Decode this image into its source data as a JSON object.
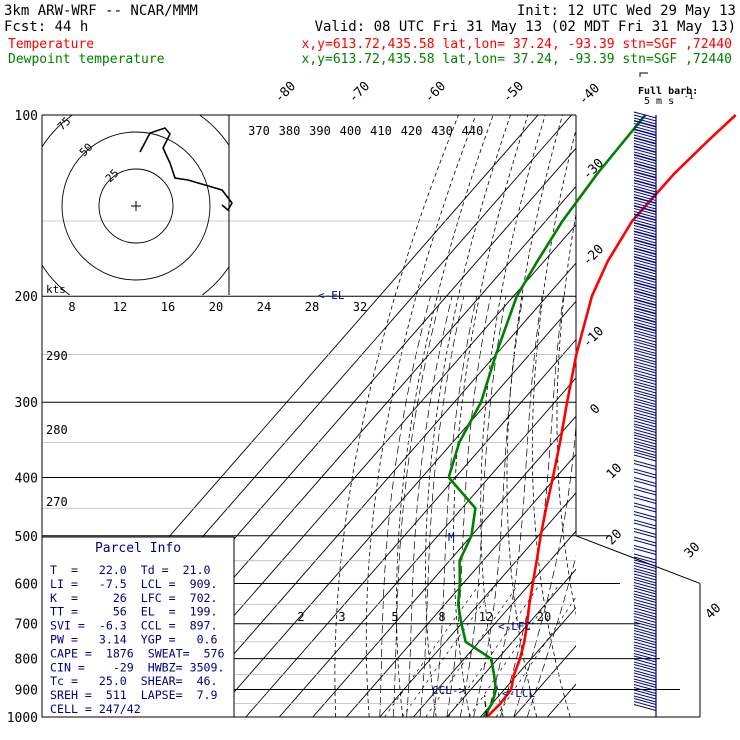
{
  "header": {
    "model": "3km ARW-WRF -- NCAR/MMM",
    "init": "Init: 12 UTC Wed 29 May 13",
    "fcst": "Fcst:   44 h",
    "valid": "Valid: 08 UTC Fri 31 May 13 (02 MDT Fri 31 May 13)",
    "legend": [
      {
        "name": "Temperature",
        "info": "x,y=613.72,435.58   lat,lon= 37.24, -93.39  stn=SGF ,72440",
        "color": "#ff0000"
      },
      {
        "name": "Dewpoint temperature",
        "info": "x,y=613.72,435.58   lat,lon= 37.24, -93.39  stn=SGF ,72440",
        "color": "#008000"
      }
    ]
  },
  "barb_key": {
    "title": "Full barb:",
    "value": "5 m s",
    "exponent": "-1"
  },
  "labels": {
    "kts": "kts",
    "el": "<-EL",
    "lfc": "<-LFC",
    "ccl": "CCL->",
    "lcl": "<-LCL",
    "m": "M"
  },
  "parcel_info": {
    "title": "Parcel Info",
    "rows": [
      "T  =   22.0  Td =  21.0",
      "LI =   -7.5  LCL =  909.",
      "K  =     26  LFC =  702.",
      "TT =     56  EL  =  199.",
      "SVI =  -6.3  CCL =  897.",
      "PW =   3.14  YGP =   0.6",
      "CAPE =  1876  SWEAT=  576",
      "CIN =    -29  HWBZ= 3509.",
      "Tc =   25.0  SHEAR=  46.",
      "SREH =  511  LAPSE=  7.9",
      "CELL = 247/42"
    ]
  },
  "hodograph": {
    "ring_labels": [
      "75",
      "50",
      "25"
    ],
    "bottom_labels": [
      "8",
      "12",
      "16",
      "20",
      "24",
      "28",
      "32"
    ]
  },
  "chart_data": {
    "type": "line",
    "title": "",
    "pressure_levels": [
      "100",
      "200",
      "300",
      "400",
      "500",
      "600",
      "700",
      "800",
      "900",
      "1000"
    ],
    "isotherm_labels": [
      "-80",
      "-70",
      "-60",
      "-50",
      "-40",
      "-30",
      "-20",
      "-10",
      "0",
      "10",
      "20",
      "30",
      "40"
    ],
    "theta_labels": [
      "370",
      "380",
      "390",
      "400",
      "410",
      "420",
      "430",
      "440"
    ],
    "theta_side_labels": [
      "290",
      "280",
      "270"
    ],
    "mixing_ratio_labels": [
      "2",
      "3",
      "5",
      "8",
      "12",
      "20"
    ],
    "series": [
      {
        "name": "Temperature",
        "color": "#ff0000",
        "points": [
          {
            "p": 1000,
            "t": 22.0
          },
          {
            "p": 950,
            "t": 22.5
          },
          {
            "p": 900,
            "t": 22.0
          },
          {
            "p": 850,
            "t": 19.0
          },
          {
            "p": 800,
            "t": 16.6
          },
          {
            "p": 750,
            "t": 13.5
          },
          {
            "p": 700,
            "t": 9.6
          },
          {
            "p": 650,
            "t": 5.2
          },
          {
            "p": 600,
            "t": 0.8
          },
          {
            "p": 550,
            "t": -4.0
          },
          {
            "p": 500,
            "t": -9.3
          },
          {
            "p": 450,
            "t": -14.9
          },
          {
            "p": 400,
            "t": -20.9
          },
          {
            "p": 350,
            "t": -27.9
          },
          {
            "p": 300,
            "t": -36.3
          },
          {
            "p": 250,
            "t": -46.0
          },
          {
            "p": 200,
            "t": -56.6
          },
          {
            "p": 175,
            "t": -61.0
          },
          {
            "p": 150,
            "t": -64.2
          },
          {
            "p": 125,
            "t": -64.0
          },
          {
            "p": 110,
            "t": -62.5
          },
          {
            "p": 100,
            "t": -61.0
          }
        ]
      },
      {
        "name": "Dewpoint temperature",
        "color": "#008000",
        "points": [
          {
            "p": 1000,
            "t": 21.0
          },
          {
            "p": 950,
            "t": 20.0
          },
          {
            "p": 900,
            "t": 17.5
          },
          {
            "p": 850,
            "t": 13.0
          },
          {
            "p": 800,
            "t": 8.0
          },
          {
            "p": 750,
            "t": -4.0
          },
          {
            "p": 700,
            "t": -10.0
          },
          {
            "p": 650,
            "t": -16.0
          },
          {
            "p": 600,
            "t": -21.0
          },
          {
            "p": 550,
            "t": -27.0
          },
          {
            "p": 500,
            "t": -30.0
          },
          {
            "p": 450,
            "t": -36.0
          },
          {
            "p": 400,
            "t": -52.0
          },
          {
            "p": 350,
            "t": -58.0
          },
          {
            "p": 300,
            "t": -62.0
          },
          {
            "p": 250,
            "t": -70.0
          },
          {
            "p": 200,
            "t": -79.0
          },
          {
            "p": 175,
            "t": -82.0
          },
          {
            "p": 150,
            "t": -85.0
          },
          {
            "p": 125,
            "t": -87.0
          },
          {
            "p": 100,
            "t": -88.0
          }
        ]
      }
    ]
  }
}
